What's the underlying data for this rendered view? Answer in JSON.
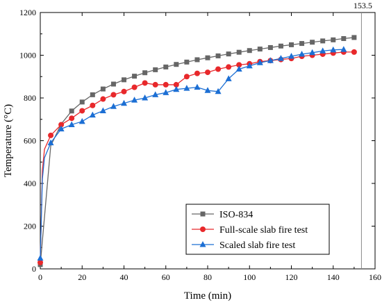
{
  "chart_data": {
    "type": "line",
    "xlabel": "Time (min)",
    "ylabel": "Temperature (°C)",
    "xlim": [
      0,
      160
    ],
    "ylim": [
      0,
      1200
    ],
    "xticks": [
      "0",
      "20",
      "40",
      "60",
      "80",
      "100",
      "120",
      "140",
      "160"
    ],
    "yticks": [
      "0",
      "200",
      "400",
      "600",
      "800",
      "1000",
      "1200"
    ],
    "grid": false,
    "legend_position": "bottom-right",
    "annotation": {
      "text": "153.5",
      "x": 153.5
    },
    "series": [
      {
        "name": "ISO-834",
        "color": "#666666",
        "marker": "square",
        "x": [
          0,
          5,
          10,
          15,
          20,
          25,
          30,
          35,
          40,
          45,
          50,
          55,
          60,
          65,
          70,
          75,
          80,
          85,
          90,
          95,
          100,
          105,
          110,
          115,
          120,
          125,
          130,
          135,
          140,
          145,
          150
        ],
        "y": [
          20,
          576,
          678,
          739,
          781,
          815,
          842,
          865,
          885,
          902,
          918,
          932,
          945,
          957,
          968,
          979,
          988,
          997,
          1006,
          1014,
          1022,
          1029,
          1036,
          1043,
          1049,
          1055,
          1061,
          1067,
          1072,
          1078,
          1083
        ]
      },
      {
        "name": "Full-scale slab fire test",
        "color": "#e8282b",
        "marker": "circle",
        "x": [
          0,
          1,
          2,
          5,
          10,
          15,
          20,
          25,
          30,
          35,
          40,
          45,
          50,
          55,
          60,
          65,
          70,
          75,
          80,
          85,
          90,
          95,
          100,
          105,
          110,
          115,
          120,
          125,
          130,
          135,
          140,
          145,
          150
        ],
        "y": [
          30,
          460,
          560,
          625,
          675,
          705,
          740,
          765,
          795,
          815,
          830,
          850,
          870,
          862,
          862,
          862,
          900,
          915,
          920,
          935,
          945,
          955,
          960,
          970,
          975,
          980,
          985,
          995,
          1000,
          1005,
          1010,
          1015,
          1015
        ]
      },
      {
        "name": "Scaled slab fire test",
        "color": "#1c6fd4",
        "marker": "triangle",
        "x": [
          0,
          1,
          2,
          5,
          10,
          15,
          20,
          25,
          30,
          35,
          40,
          45,
          50,
          55,
          60,
          65,
          70,
          75,
          80,
          85,
          90,
          95,
          100,
          105,
          110,
          115,
          120,
          125,
          130,
          135,
          140,
          145
        ],
        "y": [
          50,
          420,
          520,
          590,
          655,
          675,
          690,
          720,
          740,
          760,
          775,
          790,
          800,
          815,
          825,
          840,
          845,
          850,
          835,
          830,
          890,
          935,
          950,
          965,
          975,
          985,
          995,
          1005,
          1012,
          1020,
          1025,
          1027
        ]
      }
    ]
  }
}
